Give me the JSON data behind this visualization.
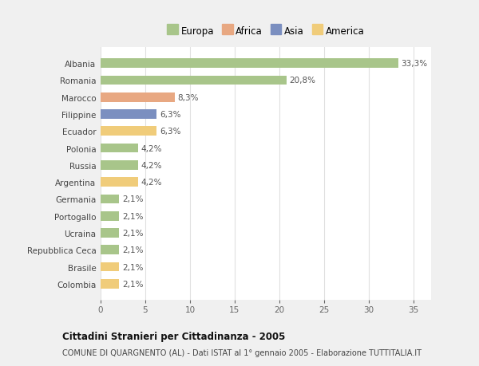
{
  "countries": [
    "Albania",
    "Romania",
    "Marocco",
    "Filippine",
    "Ecuador",
    "Polonia",
    "Russia",
    "Argentina",
    "Germania",
    "Portogallo",
    "Ucraina",
    "Repubblica Ceca",
    "Brasile",
    "Colombia"
  ],
  "values": [
    33.3,
    20.8,
    8.3,
    6.3,
    6.3,
    4.2,
    4.2,
    4.2,
    2.1,
    2.1,
    2.1,
    2.1,
    2.1,
    2.1
  ],
  "labels": [
    "33,3%",
    "20,8%",
    "8,3%",
    "6,3%",
    "6,3%",
    "4,2%",
    "4,2%",
    "4,2%",
    "2,1%",
    "2,1%",
    "2,1%",
    "2,1%",
    "2,1%",
    "2,1%"
  ],
  "colors": [
    "#a8c58a",
    "#a8c58a",
    "#e8a882",
    "#7b8fc0",
    "#f0cc7a",
    "#a8c58a",
    "#a8c58a",
    "#f0cc7a",
    "#a8c58a",
    "#a8c58a",
    "#a8c58a",
    "#a8c58a",
    "#f0cc7a",
    "#f0cc7a"
  ],
  "legend_labels": [
    "Europa",
    "Africa",
    "Asia",
    "America"
  ],
  "legend_colors": [
    "#a8c58a",
    "#e8a882",
    "#7b8fc0",
    "#f0cc7a"
  ],
  "title": "Cittadini Stranieri per Cittadinanza - 2005",
  "subtitle": "COMUNE DI QUARGNENTO (AL) - Dati ISTAT al 1° gennaio 2005 - Elaborazione TUTTITALIA.IT",
  "xlim": [
    0,
    37
  ],
  "xticks": [
    0,
    5,
    10,
    15,
    20,
    25,
    30,
    35
  ],
  "fig_bg_color": "#f0f0f0",
  "plot_bg_color": "#ffffff",
  "grid_color": "#e0e0e0"
}
